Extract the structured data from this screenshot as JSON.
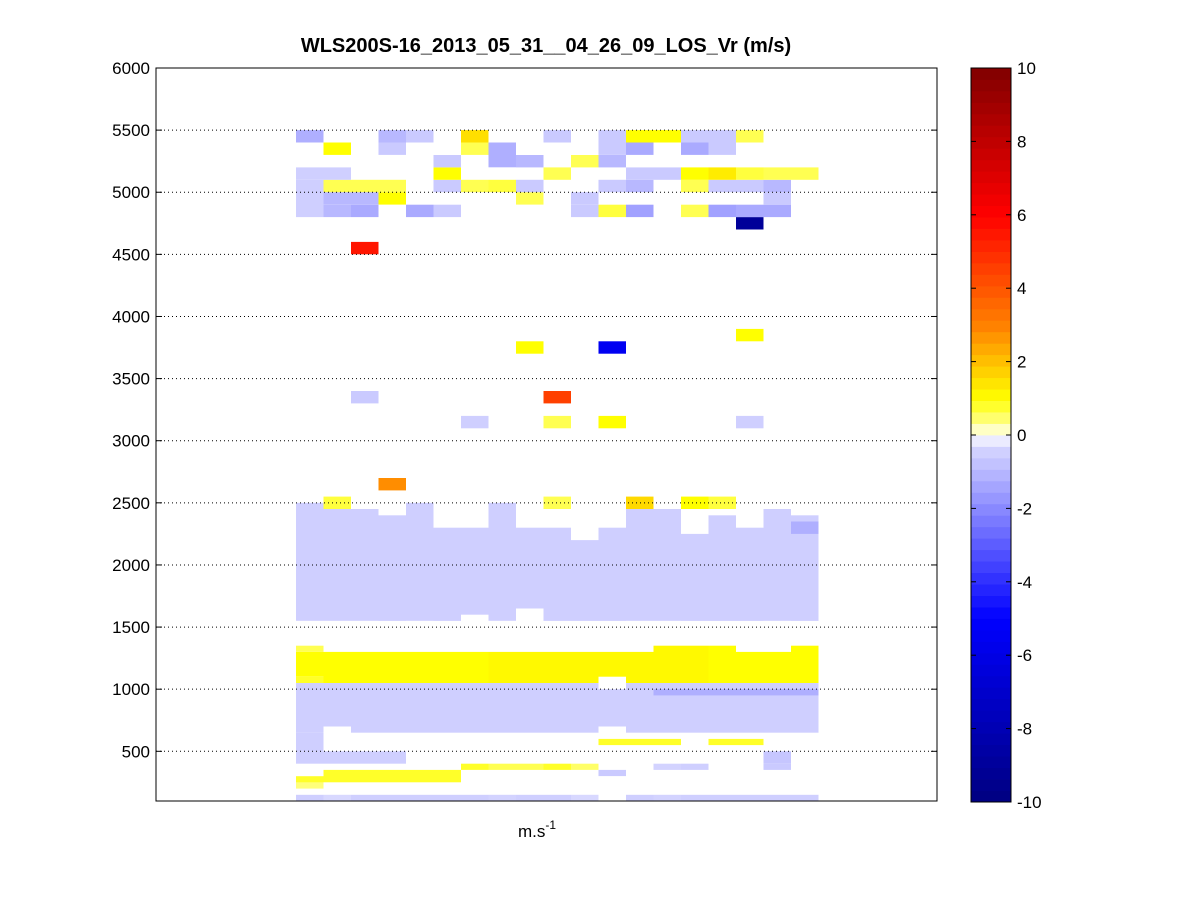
{
  "chart_data": {
    "type": "heatmap",
    "title": "WLS200S-16_2013_05_31__04_26_09_LOS_Vr (m/s)",
    "xlabel": "m.s",
    "xlabel_superscript": "-1",
    "ylabel": "",
    "ylim": [
      100,
      6000
    ],
    "y_ticks": [
      500,
      1000,
      1500,
      2000,
      2500,
      3000,
      3500,
      4000,
      4500,
      5000,
      5500,
      6000
    ],
    "y_tick_labels": [
      "500",
      "1000",
      "1500",
      "2000",
      "2500",
      "3000",
      "3500",
      "4000",
      "4500",
      "5000",
      "5500",
      "6000"
    ],
    "grid": "horizontal dotted",
    "x_columns": 19,
    "colorbar": {
      "range": [
        -10,
        10
      ],
      "ticks": [
        -10,
        -8,
        -6,
        -4,
        -2,
        0,
        2,
        4,
        6,
        8,
        10
      ],
      "tick_labels": [
        "-10",
        "-8",
        "-6",
        "-4",
        "-2",
        "0",
        "2",
        "4",
        "6",
        "8",
        "10"
      ],
      "colormap": "blue-white-yellow-red",
      "colors": {
        "min": "#000080",
        "blue": "#0000ff",
        "light_blue": "#d8d8ff",
        "white": "#ffffff",
        "light_yellow": "#ffff90",
        "yellow": "#ffff00",
        "orange": "#ff8000",
        "red": "#ff0000",
        "max": "#800000"
      }
    },
    "cells": [
      {
        "col": 0,
        "alt": 100,
        "v": -0.5,
        "h": 50
      },
      {
        "col": 1,
        "alt": 100,
        "v": -0.3,
        "h": 50
      },
      {
        "col": 2,
        "alt": 100,
        "v": -0.5,
        "h": 50
      },
      {
        "col": 3,
        "alt": 100,
        "v": -0.5,
        "h": 50
      },
      {
        "col": 4,
        "alt": 100,
        "v": -0.5,
        "h": 50
      },
      {
        "col": 5,
        "alt": 100,
        "v": -0.5,
        "h": 50
      },
      {
        "col": 6,
        "alt": 100,
        "v": -0.5,
        "h": 50
      },
      {
        "col": 7,
        "alt": 100,
        "v": -0.4,
        "h": 50
      },
      {
        "col": 8,
        "alt": 100,
        "v": -0.5,
        "h": 50
      },
      {
        "col": 9,
        "alt": 100,
        "v": -0.5,
        "h": 50
      },
      {
        "col": 10,
        "alt": 100,
        "v": -0.3,
        "h": 50
      },
      {
        "col": 12,
        "alt": 100,
        "v": -0.5,
        "h": 50
      },
      {
        "col": 13,
        "alt": 100,
        "v": -0.4,
        "h": 50
      },
      {
        "col": 14,
        "alt": 100,
        "v": -0.5,
        "h": 50
      },
      {
        "col": 15,
        "alt": 100,
        "v": -0.5,
        "h": 50
      },
      {
        "col": 16,
        "alt": 100,
        "v": -0.5,
        "h": 50
      },
      {
        "col": 17,
        "alt": 100,
        "v": -0.5,
        "h": 50
      },
      {
        "col": 18,
        "alt": 100,
        "v": -0.5,
        "h": 50
      },
      {
        "col": 0,
        "alt": 200,
        "v": 0.4,
        "h": 50
      },
      {
        "col": 0,
        "alt": 250,
        "v": 0.8,
        "h": 50
      },
      {
        "col": 1,
        "alt": 250,
        "v": 0.8,
        "h": 100
      },
      {
        "col": 2,
        "alt": 250,
        "v": 0.8,
        "h": 100
      },
      {
        "col": 3,
        "alt": 250,
        "v": 0.8,
        "h": 100
      },
      {
        "col": 4,
        "alt": 250,
        "v": 0.8,
        "h": 100
      },
      {
        "col": 5,
        "alt": 250,
        "v": 0.8,
        "h": 100
      },
      {
        "col": 6,
        "alt": 350,
        "v": 0.8,
        "h": 50
      },
      {
        "col": 7,
        "alt": 350,
        "v": 0.6,
        "h": 50
      },
      {
        "col": 8,
        "alt": 350,
        "v": 0.6,
        "h": 50
      },
      {
        "col": 9,
        "alt": 350,
        "v": 0.8,
        "h": 50
      },
      {
        "col": 10,
        "alt": 350,
        "v": 0.5,
        "h": 50
      },
      {
        "col": 11,
        "alt": 300,
        "v": -0.6,
        "h": 50
      },
      {
        "col": 13,
        "alt": 350,
        "v": -0.4,
        "h": 50
      },
      {
        "col": 14,
        "alt": 350,
        "v": -0.5,
        "h": 50
      },
      {
        "col": 17,
        "alt": 350,
        "v": -0.6,
        "h": 50
      },
      {
        "col": 0,
        "alt": 400,
        "v": -0.5,
        "h": 100
      },
      {
        "col": 1,
        "alt": 400,
        "v": -0.5,
        "h": 100
      },
      {
        "col": 2,
        "alt": 400,
        "v": -0.5,
        "h": 100
      },
      {
        "col": 3,
        "alt": 400,
        "v": -0.5,
        "h": 100
      },
      {
        "col": 17,
        "alt": 400,
        "v": -0.7,
        "h": 100
      },
      {
        "col": 0,
        "alt": 500,
        "v": -0.5,
        "h": 150
      },
      {
        "col": 15,
        "alt": 550,
        "v": 0.8,
        "h": 50
      },
      {
        "col": 16,
        "alt": 550,
        "v": 0.8,
        "h": 50
      },
      {
        "col": 11,
        "alt": 550,
        "v": 0.8,
        "h": 50
      },
      {
        "col": 12,
        "alt": 550,
        "v": 0.8,
        "h": 50
      },
      {
        "col": 13,
        "alt": 550,
        "v": 0.8,
        "h": 50
      },
      {
        "col": 0,
        "alt": 650,
        "v": -0.5,
        "h": 400
      },
      {
        "col": 1,
        "alt": 700,
        "v": -0.5,
        "h": 350
      },
      {
        "col": 2,
        "alt": 650,
        "v": -0.5,
        "h": 400
      },
      {
        "col": 3,
        "alt": 650,
        "v": -0.5,
        "h": 400
      },
      {
        "col": 4,
        "alt": 650,
        "v": -0.5,
        "h": 400
      },
      {
        "col": 5,
        "alt": 650,
        "v": -0.5,
        "h": 400
      },
      {
        "col": 6,
        "alt": 650,
        "v": -0.5,
        "h": 400
      },
      {
        "col": 7,
        "alt": 650,
        "v": -0.5,
        "h": 400
      },
      {
        "col": 8,
        "alt": 650,
        "v": -0.5,
        "h": 400
      },
      {
        "col": 9,
        "alt": 650,
        "v": -0.5,
        "h": 400
      },
      {
        "col": 10,
        "alt": 650,
        "v": -0.5,
        "h": 400
      },
      {
        "col": 11,
        "alt": 700,
        "v": -0.5,
        "h": 300
      },
      {
        "col": 12,
        "alt": 650,
        "v": -0.5,
        "h": 400
      },
      {
        "col": 13,
        "alt": 650,
        "v": -0.5,
        "h": 400
      },
      {
        "col": 14,
        "alt": 650,
        "v": -0.5,
        "h": 400
      },
      {
        "col": 15,
        "alt": 650,
        "v": -0.5,
        "h": 400
      },
      {
        "col": 16,
        "alt": 650,
        "v": -0.5,
        "h": 400
      },
      {
        "col": 17,
        "alt": 650,
        "v": -0.5,
        "h": 400
      },
      {
        "col": 18,
        "alt": 650,
        "v": -0.5,
        "h": 400
      },
      {
        "col": 13,
        "alt": 950,
        "v": -1.2,
        "h": 50
      },
      {
        "col": 14,
        "alt": 950,
        "v": -1.2,
        "h": 50
      },
      {
        "col": 15,
        "alt": 950,
        "v": -1.2,
        "h": 50
      },
      {
        "col": 16,
        "alt": 950,
        "v": -1.2,
        "h": 50
      },
      {
        "col": 17,
        "alt": 950,
        "v": -1.2,
        "h": 50
      },
      {
        "col": 18,
        "alt": 950,
        "v": -1.2,
        "h": 50
      },
      {
        "col": 0,
        "alt": 1050,
        "v": 0.8,
        "h": 50
      },
      {
        "col": 0,
        "alt": 1100,
        "v": 1.0,
        "h": 200
      },
      {
        "col": 1,
        "alt": 1050,
        "v": 1.0,
        "h": 250
      },
      {
        "col": 2,
        "alt": 1050,
        "v": 1.0,
        "h": 250
      },
      {
        "col": 3,
        "alt": 1050,
        "v": 1.0,
        "h": 250
      },
      {
        "col": 4,
        "alt": 1050,
        "v": 1.0,
        "h": 250
      },
      {
        "col": 5,
        "alt": 1050,
        "v": 1.0,
        "h": 250
      },
      {
        "col": 6,
        "alt": 1050,
        "v": 1.0,
        "h": 250
      },
      {
        "col": 7,
        "alt": 1050,
        "v": 1.1,
        "h": 250
      },
      {
        "col": 8,
        "alt": 1050,
        "v": 1.1,
        "h": 250
      },
      {
        "col": 9,
        "alt": 1050,
        "v": 1.1,
        "h": 250
      },
      {
        "col": 10,
        "alt": 1050,
        "v": 1.1,
        "h": 250
      },
      {
        "col": 11,
        "alt": 1100,
        "v": 1.1,
        "h": 200
      },
      {
        "col": 12,
        "alt": 1050,
        "v": 1.1,
        "h": 250
      },
      {
        "col": 13,
        "alt": 1050,
        "v": 1.1,
        "h": 300
      },
      {
        "col": 14,
        "alt": 1050,
        "v": 1.1,
        "h": 300
      },
      {
        "col": 15,
        "alt": 1050,
        "v": 1.0,
        "h": 300
      },
      {
        "col": 16,
        "alt": 1050,
        "v": 1.0,
        "h": 250
      },
      {
        "col": 17,
        "alt": 1050,
        "v": 1.0,
        "h": 250
      },
      {
        "col": 18,
        "alt": 1050,
        "v": 1.0,
        "h": 300
      },
      {
        "col": 0,
        "alt": 1300,
        "v": 0.6,
        "h": 50
      },
      {
        "col": 0,
        "alt": 1550,
        "v": -0.5,
        "h": 950
      },
      {
        "col": 1,
        "alt": 1550,
        "v": -0.5,
        "h": 950
      },
      {
        "col": 2,
        "alt": 1550,
        "v": -0.5,
        "h": 900
      },
      {
        "col": 3,
        "alt": 1550,
        "v": -0.5,
        "h": 850
      },
      {
        "col": 4,
        "alt": 1550,
        "v": -0.5,
        "h": 950
      },
      {
        "col": 5,
        "alt": 1550,
        "v": -0.5,
        "h": 750
      },
      {
        "col": 6,
        "alt": 1600,
        "v": -0.5,
        "h": 700
      },
      {
        "col": 7,
        "alt": 1550,
        "v": -0.5,
        "h": 950
      },
      {
        "col": 8,
        "alt": 1650,
        "v": -0.5,
        "h": 650
      },
      {
        "col": 9,
        "alt": 1550,
        "v": -0.5,
        "h": 750
      },
      {
        "col": 10,
        "alt": 1550,
        "v": -0.5,
        "h": 650
      },
      {
        "col": 11,
        "alt": 1550,
        "v": -0.5,
        "h": 750
      },
      {
        "col": 12,
        "alt": 1550,
        "v": -0.5,
        "h": 900
      },
      {
        "col": 13,
        "alt": 1550,
        "v": -0.5,
        "h": 900
      },
      {
        "col": 14,
        "alt": 1550,
        "v": -0.5,
        "h": 700
      },
      {
        "col": 15,
        "alt": 1550,
        "v": -0.5,
        "h": 850
      },
      {
        "col": 16,
        "alt": 1550,
        "v": -0.5,
        "h": 750
      },
      {
        "col": 17,
        "alt": 1550,
        "v": -0.5,
        "h": 900
      },
      {
        "col": 18,
        "alt": 1550,
        "v": -0.5,
        "h": 850
      },
      {
        "col": 18,
        "alt": 2250,
        "v": -1.2,
        "h": 100
      },
      {
        "col": 1,
        "alt": 2450,
        "v": 0.7,
        "h": 100
      },
      {
        "col": 9,
        "alt": 2450,
        "v": 0.6,
        "h": 100
      },
      {
        "col": 12,
        "alt": 2450,
        "v": 1.6,
        "h": 100
      },
      {
        "col": 14,
        "alt": 2450,
        "v": 1.0,
        "h": 100
      },
      {
        "col": 15,
        "alt": 2450,
        "v": 0.7,
        "h": 100
      },
      {
        "col": 3,
        "alt": 2600,
        "v": 2.8,
        "h": 100
      },
      {
        "col": 6,
        "alt": 3100,
        "v": -0.5,
        "h": 100
      },
      {
        "col": 9,
        "alt": 3100,
        "v": 0.6,
        "h": 100
      },
      {
        "col": 11,
        "alt": 3100,
        "v": 1.0,
        "h": 100
      },
      {
        "col": 16,
        "alt": 3100,
        "v": -0.5,
        "h": 100
      },
      {
        "col": 2,
        "alt": 3300,
        "v": -0.6,
        "h": 100
      },
      {
        "col": 9,
        "alt": 3300,
        "v": 4.5,
        "h": 100
      },
      {
        "col": 8,
        "alt": 3700,
        "v": 1.0,
        "h": 100
      },
      {
        "col": 11,
        "alt": 3700,
        "v": -5.5,
        "h": 100
      },
      {
        "col": 16,
        "alt": 3800,
        "v": 1.0,
        "h": 100
      },
      {
        "col": 2,
        "alt": 4500,
        "v": 5.5,
        "h": 100
      },
      {
        "col": 16,
        "alt": 4700,
        "v": -9.0,
        "h": 100
      },
      {
        "col": 0,
        "alt": 4800,
        "v": -0.5,
        "h": 300
      },
      {
        "col": 1,
        "alt": 4800,
        "v": -1.0,
        "h": 100
      },
      {
        "col": 2,
        "alt": 4800,
        "v": -1.3,
        "h": 100
      },
      {
        "col": 3,
        "alt": 4900,
        "v": 1.0,
        "h": 100
      },
      {
        "col": 4,
        "alt": 4800,
        "v": -1.3,
        "h": 100
      },
      {
        "col": 5,
        "alt": 4800,
        "v": -0.6,
        "h": 100
      },
      {
        "col": 8,
        "alt": 4900,
        "v": 0.6,
        "h": 100
      },
      {
        "col": 10,
        "alt": 4800,
        "v": -0.6,
        "h": 100
      },
      {
        "col": 11,
        "alt": 4800,
        "v": 0.7,
        "h": 100
      },
      {
        "col": 12,
        "alt": 4800,
        "v": -1.5,
        "h": 100
      },
      {
        "col": 14,
        "alt": 4800,
        "v": 0.6,
        "h": 100
      },
      {
        "col": 15,
        "alt": 4800,
        "v": -1.5,
        "h": 100
      },
      {
        "col": 16,
        "alt": 4800,
        "v": -1.3,
        "h": 100
      },
      {
        "col": 17,
        "alt": 4800,
        "v": -1.3,
        "h": 100
      },
      {
        "col": 1,
        "alt": 4900,
        "v": -1.0,
        "h": 100
      },
      {
        "col": 2,
        "alt": 4900,
        "v": -1.0,
        "h": 100
      },
      {
        "col": 10,
        "alt": 4900,
        "v": -0.6,
        "h": 100
      },
      {
        "col": 17,
        "alt": 4900,
        "v": -0.6,
        "h": 100
      },
      {
        "col": 1,
        "alt": 5000,
        "v": 0.6,
        "h": 100
      },
      {
        "col": 2,
        "alt": 5000,
        "v": 0.6,
        "h": 100
      },
      {
        "col": 3,
        "alt": 5000,
        "v": 0.6,
        "h": 100
      },
      {
        "col": 5,
        "alt": 5000,
        "v": -0.6,
        "h": 100
      },
      {
        "col": 6,
        "alt": 5000,
        "v": 0.6,
        "h": 100
      },
      {
        "col": 7,
        "alt": 5000,
        "v": 0.7,
        "h": 100
      },
      {
        "col": 8,
        "alt": 5000,
        "v": -0.6,
        "h": 100
      },
      {
        "col": 11,
        "alt": 5000,
        "v": -0.6,
        "h": 100
      },
      {
        "col": 12,
        "alt": 5000,
        "v": -1.0,
        "h": 100
      },
      {
        "col": 14,
        "alt": 5000,
        "v": 0.6,
        "h": 100
      },
      {
        "col": 15,
        "alt": 5000,
        "v": -0.6,
        "h": 100
      },
      {
        "col": 16,
        "alt": 5000,
        "v": -0.6,
        "h": 100
      },
      {
        "col": 17,
        "alt": 5000,
        "v": -1.0,
        "h": 100
      },
      {
        "col": 0,
        "alt": 5100,
        "v": -0.5,
        "h": 100
      },
      {
        "col": 1,
        "alt": 5100,
        "v": -0.5,
        "h": 100
      },
      {
        "col": 5,
        "alt": 5100,
        "v": 1.0,
        "h": 100
      },
      {
        "col": 9,
        "alt": 5100,
        "v": 0.6,
        "h": 100
      },
      {
        "col": 12,
        "alt": 5100,
        "v": -0.6,
        "h": 100
      },
      {
        "col": 13,
        "alt": 5100,
        "v": -0.6,
        "h": 100
      },
      {
        "col": 14,
        "alt": 5100,
        "v": 1.0,
        "h": 100
      },
      {
        "col": 15,
        "alt": 5100,
        "v": 1.3,
        "h": 100
      },
      {
        "col": 16,
        "alt": 5100,
        "v": 0.7,
        "h": 100
      },
      {
        "col": 17,
        "alt": 5100,
        "v": 0.6,
        "h": 100
      },
      {
        "col": 18,
        "alt": 5100,
        "v": 0.6,
        "h": 100
      },
      {
        "col": 5,
        "alt": 5200,
        "v": -0.6,
        "h": 100
      },
      {
        "col": 8,
        "alt": 5200,
        "v": -1.0,
        "h": 100
      },
      {
        "col": 10,
        "alt": 5200,
        "v": 0.6,
        "h": 100
      },
      {
        "col": 11,
        "alt": 5200,
        "v": -1.0,
        "h": 100
      },
      {
        "col": 1,
        "alt": 5300,
        "v": 1.0,
        "h": 100
      },
      {
        "col": 3,
        "alt": 5300,
        "v": -0.6,
        "h": 100
      },
      {
        "col": 6,
        "alt": 5300,
        "v": 0.6,
        "h": 100
      },
      {
        "col": 7,
        "alt": 5200,
        "v": -1.2,
        "h": 200
      },
      {
        "col": 11,
        "alt": 5300,
        "v": -0.6,
        "h": 100
      },
      {
        "col": 12,
        "alt": 5300,
        "v": -1.3,
        "h": 100
      },
      {
        "col": 14,
        "alt": 5300,
        "v": -1.3,
        "h": 100
      },
      {
        "col": 15,
        "alt": 5300,
        "v": -0.6,
        "h": 100
      },
      {
        "col": 0,
        "alt": 5400,
        "v": -1.2,
        "h": 100
      },
      {
        "col": 3,
        "alt": 5400,
        "v": -1.0,
        "h": 100
      },
      {
        "col": 4,
        "alt": 5400,
        "v": -0.6,
        "h": 100
      },
      {
        "col": 6,
        "alt": 5400,
        "v": 1.5,
        "h": 100
      },
      {
        "col": 9,
        "alt": 5400,
        "v": -0.6,
        "h": 100
      },
      {
        "col": 11,
        "alt": 5400,
        "v": -0.6,
        "h": 100
      },
      {
        "col": 12,
        "alt": 5400,
        "v": 1.0,
        "h": 100
      },
      {
        "col": 13,
        "alt": 5400,
        "v": 1.0,
        "h": 100
      },
      {
        "col": 14,
        "alt": 5400,
        "v": -0.6,
        "h": 100
      },
      {
        "col": 15,
        "alt": 5400,
        "v": -0.6,
        "h": 100
      },
      {
        "col": 16,
        "alt": 5400,
        "v": 0.6,
        "h": 100
      }
    ]
  }
}
